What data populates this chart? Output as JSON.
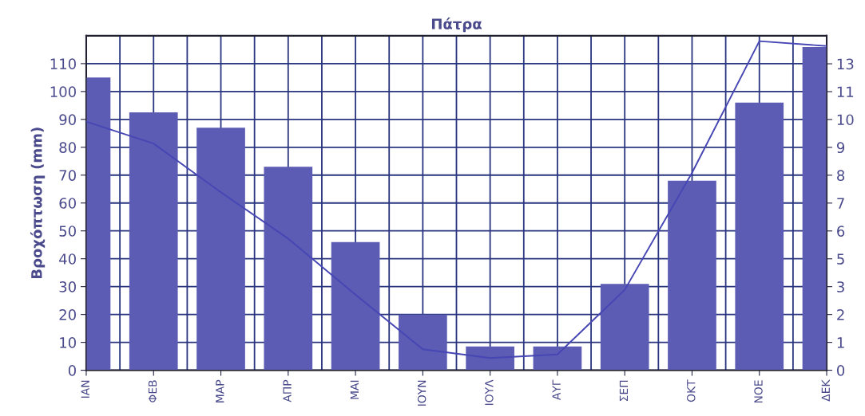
{
  "chart_data": {
    "type": "bar",
    "title": "Πάτρα",
    "ylabel": "Βροχόπτωση (mm)",
    "categories": [
      "ΙΑΝ",
      "ΦΕΒ",
      "ΜΑΡ",
      "ΑΠΡ",
      "ΜΑΙ",
      "ΙΟΥΝ",
      "ΙΟΥΛ",
      "ΑΥΓ",
      "ΣΕΠ",
      "ΟΚΤ",
      "ΝΟΕ",
      "ΔΕΚ"
    ],
    "series": [
      {
        "color": "#5c5cb4",
        "values": [
          105,
          92.5,
          87,
          73,
          46,
          20,
          8.5,
          8.5,
          31,
          68,
          96,
          116
        ]
      },
      {
        "type": "line",
        "axis": "y2",
        "color": "#4646b4",
        "values": [
          10.2,
          9.3,
          7.3,
          5.4,
          3.1,
          0.86,
          0.5,
          0.65,
          3.3,
          8.1,
          13.5,
          13.3
        ]
      }
    ],
    "ylim": [
      0,
      120
    ],
    "yticks": [
      0,
      10,
      20,
      30,
      40,
      50,
      60,
      70,
      80,
      90,
      100,
      110
    ],
    "y2lim": [
      0,
      13.72
    ],
    "y2ticks": [
      {
        "value": 0,
        "label": "0"
      },
      {
        "value": 1.143,
        "label": "1"
      },
      {
        "value": 2.286,
        "label": "2"
      },
      {
        "value": 3.429,
        "label": "3"
      },
      {
        "value": 4.571,
        "label": "5"
      },
      {
        "value": 5.714,
        "label": "6"
      },
      {
        "value": 6.857,
        "label": "7"
      },
      {
        "value": 8,
        "label": "8"
      },
      {
        "value": 9.143,
        "label": "9"
      },
      {
        "value": 10.286,
        "label": "10"
      },
      {
        "value": 11.429,
        "label": "11"
      },
      {
        "value": 12.571,
        "label": "13"
      }
    ],
    "grid": true
  }
}
